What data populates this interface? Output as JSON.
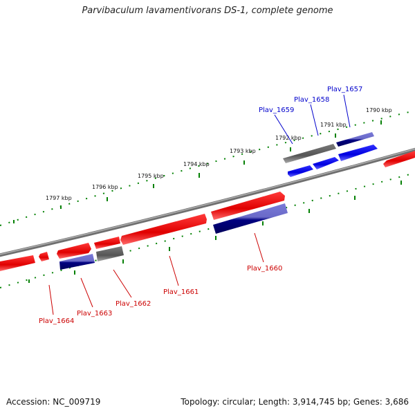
{
  "title": "Parvibaculum lavamentivorans DS-1, complete genome",
  "footer": {
    "accession": "Accession: NC_009719",
    "summary": "Topology: circular; Length: 3,914,745 bp; Genes: 3,686"
  },
  "colors": {
    "backbone": "#7f7f7f",
    "forward_cds": "#ff0000",
    "reverse_cds": "#0000ff",
    "other_feature": "#666666",
    "tick": "#008000",
    "label_forward": "#cc0000",
    "label_reverse": "#0000cc"
  },
  "ticks": [
    "1790 kbp",
    "1791 kbp",
    "1792 kbp",
    "1793 kbp",
    "1794 kbp",
    "1795 kbp",
    "1796 kbp",
    "1797 kbp"
  ],
  "gene_labels": {
    "plav_1657": "Plav_1657",
    "plav_1658": "Plav_1658",
    "plav_1659": "Plav_1659",
    "plav_1660": "Plav_1660",
    "plav_1661": "Plav_1661",
    "plav_1662": "Plav_1662",
    "plav_1663": "Plav_1663",
    "plav_1664": "Plav_1664"
  }
}
